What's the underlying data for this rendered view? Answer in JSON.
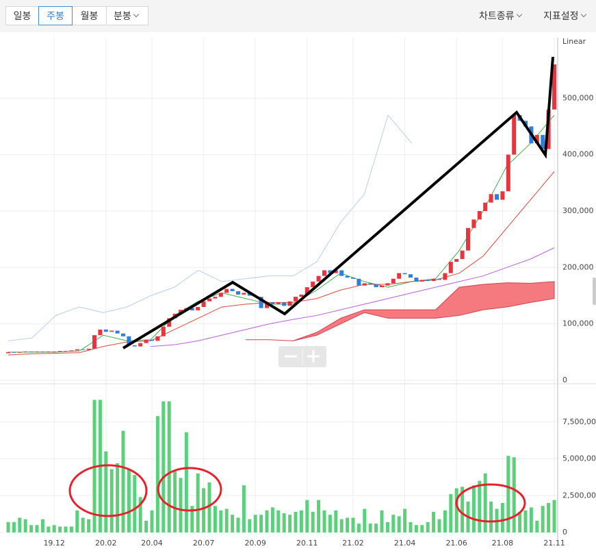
{
  "toolbar": {
    "buttons": [
      "일봉",
      "주봉",
      "월봉",
      "분봉"
    ],
    "menus": [
      "차트종류",
      "지표설정"
    ]
  },
  "chart_data": [
    {
      "type": "candlestick",
      "scale_label": "Linear",
      "up_color": "#e8343f",
      "down_color": "#2f7de0",
      "ylim": [
        0,
        600000
      ],
      "yticks": [
        0,
        {
          "value": 100000,
          "label": "100,000"
        },
        {
          "value": 200000,
          "label": "200,000"
        },
        {
          "value": 300000,
          "label": "300,000"
        },
        {
          "value": 400000,
          "label": "400,000"
        },
        {
          "value": 500000,
          "label": "500,000"
        }
      ],
      "grid": true,
      "open": [
        48000,
        50000,
        49000,
        50000,
        51000,
        50000,
        51000,
        50000,
        51000,
        51000,
        52000,
        52000,
        53000,
        55000,
        54000,
        56000,
        80000,
        90000,
        86000,
        88000,
        83000,
        78000,
        62000,
        60000,
        66000,
        72000,
        70000,
        78000,
        95000,
        110000,
        118000,
        125000,
        128000,
        124000,
        130000,
        140000,
        145000,
        148000,
        155000,
        162000,
        158000,
        152000,
        155000,
        150000,
        148000,
        128000,
        138000,
        135000,
        138000,
        132000,
        140000,
        148000,
        152000,
        165000,
        175000,
        185000,
        195000,
        190000,
        195000,
        185000,
        182000,
        180000,
        168000,
        172000,
        170000,
        165000,
        168000,
        172000,
        180000,
        190000,
        188000,
        182000,
        175000,
        178000,
        176000,
        180000,
        178000,
        190000,
        210000,
        215000,
        230000,
        270000,
        285000,
        300000,
        315000,
        330000,
        320000,
        335000,
        400000,
        470000,
        460000,
        450000,
        420000,
        435000,
        410000,
        480000
      ],
      "close": [
        50000,
        49000,
        50000,
        51000,
        50000,
        51000,
        50000,
        51000,
        51000,
        52000,
        52000,
        53000,
        55000,
        54000,
        56000,
        80000,
        90000,
        86000,
        88000,
        83000,
        78000,
        62000,
        60000,
        66000,
        72000,
        70000,
        78000,
        95000,
        110000,
        118000,
        125000,
        128000,
        124000,
        130000,
        140000,
        145000,
        148000,
        155000,
        162000,
        158000,
        152000,
        155000,
        150000,
        148000,
        128000,
        138000,
        135000,
        138000,
        132000,
        140000,
        148000,
        152000,
        165000,
        175000,
        185000,
        195000,
        190000,
        195000,
        185000,
        182000,
        180000,
        168000,
        172000,
        170000,
        165000,
        168000,
        172000,
        180000,
        190000,
        188000,
        182000,
        175000,
        178000,
        176000,
        180000,
        178000,
        190000,
        210000,
        215000,
        230000,
        270000,
        285000,
        300000,
        315000,
        330000,
        320000,
        335000,
        400000,
        470000,
        460000,
        450000,
        420000,
        435000,
        410000,
        480000,
        560000
      ],
      "lines": [
        {
          "color": "#3cb04a",
          "values": [
            50000,
            50000,
            50000,
            52000,
            80000,
            70000,
            72000,
            115000,
            140000,
            155000,
            145000,
            135000,
            135000,
            160000,
            190000,
            175000,
            165000,
            175000,
            180000,
            230000,
            300000,
            380000,
            420000,
            470000
          ]
        },
        {
          "color": "#e0463c",
          "values": [
            45000,
            47000,
            48000,
            49000,
            60000,
            68000,
            70000,
            90000,
            110000,
            130000,
            135000,
            138000,
            138000,
            145000,
            160000,
            170000,
            170000,
            175000,
            178000,
            190000,
            220000,
            270000,
            320000,
            370000
          ]
        },
        {
          "color": "#b85ce0",
          "values": [
            null,
            null,
            null,
            null,
            null,
            null,
            60000,
            63000,
            70000,
            80000,
            90000,
            100000,
            108000,
            115000,
            125000,
            135000,
            145000,
            155000,
            165000,
            175000,
            185000,
            200000,
            215000,
            235000
          ]
        },
        {
          "color": "#b7cff0",
          "values": [
            70000,
            75000,
            115000,
            130000,
            120000,
            130000,
            150000,
            165000,
            195000,
            175000,
            180000,
            185000,
            185000,
            210000,
            280000,
            330000,
            470000,
            420000,
            null,
            null,
            null,
            null,
            null,
            null
          ]
        }
      ],
      "cloud": {
        "color": "#f47a80",
        "upper": [
          null,
          null,
          null,
          null,
          null,
          null,
          null,
          null,
          null,
          null,
          72000,
          72000,
          70000,
          85000,
          110000,
          125000,
          125000,
          125000,
          125000,
          165000,
          170000,
          173000,
          172000,
          175000
        ],
        "lower": [
          null,
          null,
          null,
          null,
          null,
          null,
          null,
          null,
          null,
          null,
          72000,
          72000,
          70000,
          80000,
          100000,
          120000,
          110000,
          110000,
          110000,
          115000,
          125000,
          130000,
          138000,
          145000
        ]
      }
    },
    {
      "type": "bar",
      "color": "#5ccf7a",
      "categories": [
        null,
        null,
        null,
        null,
        null,
        null,
        null,
        null,
        "19.12",
        null,
        null,
        null,
        null,
        null,
        null,
        null,
        null,
        "20.02",
        null,
        null,
        null,
        null,
        null,
        null,
        null,
        "20.04",
        null,
        null,
        null,
        null,
        null,
        null,
        null,
        null,
        "20.07",
        null,
        null,
        null,
        null,
        null,
        null,
        null,
        null,
        "20.09",
        null,
        null,
        null,
        null,
        null,
        null,
        null,
        null,
        "20.11",
        null,
        null,
        null,
        null,
        null,
        null,
        null,
        "21.02",
        null,
        null,
        null,
        null,
        null,
        null,
        null,
        null,
        "21.04",
        null,
        null,
        null,
        null,
        null,
        null,
        null,
        null,
        "21.06",
        null,
        null,
        null,
        null,
        null,
        null,
        null,
        "21.08",
        null,
        null,
        null,
        null,
        null,
        null,
        null,
        null,
        "21.11"
      ],
      "values": [
        700000,
        700000,
        1000000,
        900000,
        500000,
        500000,
        900000,
        400000,
        500000,
        400000,
        400000,
        400000,
        1500000,
        1000000,
        900000,
        9000000,
        9000000,
        5500000,
        4300000,
        4700000,
        6900000,
        4300000,
        3900000,
        2400000,
        800000,
        1500000,
        7900000,
        8900000,
        8900000,
        4200000,
        3700000,
        6800000,
        1800000,
        4000000,
        3000000,
        3400000,
        1800000,
        1500000,
        1600000,
        1200000,
        1000000,
        3200000,
        900000,
        1200000,
        1200000,
        1500000,
        1700000,
        1500000,
        1300000,
        1200000,
        1400000,
        1500000,
        2200000,
        1400000,
        2200000,
        1500000,
        1200000,
        1500000,
        900000,
        1000000,
        1000000,
        600000,
        1600000,
        600000,
        600000,
        1500000,
        700000,
        1200000,
        1100000,
        1600000,
        700000,
        500000,
        500000,
        700000,
        1400000,
        900000,
        1500000,
        2600000,
        3000000,
        3100000,
        2100000,
        3200000,
        3500000,
        4000000,
        2100000,
        1600000,
        2000000,
        5200000,
        5100000,
        1400000,
        1500000,
        1700000,
        800000,
        1800000,
        2000000,
        2200000
      ],
      "ylim": [
        0,
        10000000
      ],
      "yticks": [
        0,
        {
          "value": 2500000,
          "label": "2,500,000"
        },
        {
          "value": 5000000,
          "label": "5,000,000"
        },
        {
          "value": 7500000,
          "label": "7,500,000"
        }
      ],
      "grid": true
    }
  ]
}
